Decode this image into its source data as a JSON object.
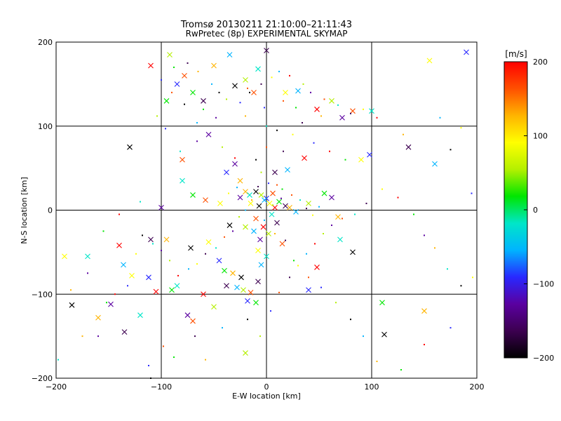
{
  "chart_data": {
    "type": "scatter",
    "title": "Tromsø 20130211 21:10:00–21:11:43",
    "subtitle": "RwPretec (8p) EXPERIMENTAL SKYMAP",
    "xlabel": "E-W location [km]",
    "ylabel": "N-S location [km]",
    "xlim": [
      -200,
      200
    ],
    "ylim": [
      -200,
      200
    ],
    "xticks": [
      -200,
      -100,
      0,
      100,
      200
    ],
    "yticks": [
      -200,
      -100,
      0,
      100,
      200
    ],
    "grid": true,
    "colorbar": {
      "label": "[m/s]",
      "min": -200,
      "max": 200,
      "ticks": [
        200,
        100,
        0,
        -100,
        -200
      ],
      "colors": [
        "#000000",
        "#3c0050",
        "#5a00a0",
        "#2828ff",
        "#00b4ff",
        "#00e6c8",
        "#00e600",
        "#b4f000",
        "#ffff00",
        "#ffb400",
        "#ff5000",
        "#ff0000"
      ]
    },
    "series": [
      {
        "marker": "x",
        "points": [
          [
            -130,
            75
          ],
          [
            -92,
            185
          ],
          [
            -85,
            150
          ],
          [
            -78,
            160
          ],
          [
            -70,
            140
          ],
          [
            -60,
            130
          ],
          [
            -50,
            172
          ],
          [
            -35,
            185
          ],
          [
            -30,
            148
          ],
          [
            -20,
            155
          ],
          [
            -12,
            140
          ],
          [
            -8,
            168
          ],
          [
            0,
            190
          ],
          [
            18,
            140
          ],
          [
            30,
            142
          ],
          [
            48,
            120
          ],
          [
            62,
            130
          ],
          [
            72,
            110
          ],
          [
            82,
            118
          ],
          [
            100,
            118
          ],
          [
            155,
            178
          ],
          [
            190,
            188
          ],
          [
            -110,
            172
          ],
          [
            -95,
            130
          ],
          [
            -100,
            3
          ],
          [
            -95,
            -35
          ],
          [
            -80,
            35
          ],
          [
            -72,
            -45
          ],
          [
            -55,
            -38
          ],
          [
            -45,
            -60
          ],
          [
            -40,
            -72
          ],
          [
            -38,
            -90
          ],
          [
            -32,
            -75
          ],
          [
            -28,
            -92
          ],
          [
            -24,
            -80
          ],
          [
            -22,
            -95
          ],
          [
            -18,
            -108
          ],
          [
            -15,
            -98
          ],
          [
            -10,
            -110
          ],
          [
            -8,
            -85
          ],
          [
            -5,
            -65
          ],
          [
            -60,
            -100
          ],
          [
            -50,
            -115
          ],
          [
            -75,
            -125
          ],
          [
            -70,
            -132
          ],
          [
            -85,
            -90
          ],
          [
            -110,
            -35
          ],
          [
            -128,
            -78
          ],
          [
            -136,
            -65
          ],
          [
            -140,
            -42
          ],
          [
            -148,
            -112
          ],
          [
            -160,
            -128
          ],
          [
            -170,
            -55
          ],
          [
            -185,
            -113
          ],
          [
            -192,
            -55
          ],
          [
            -112,
            -80
          ],
          [
            -105,
            -97
          ],
          [
            -90,
            -95
          ],
          [
            -30,
            55
          ],
          [
            -25,
            35
          ],
          [
            -10,
            22
          ],
          [
            -5,
            18
          ],
          [
            0,
            14
          ],
          [
            6,
            20
          ],
          [
            12,
            10
          ],
          [
            18,
            5
          ],
          [
            22,
            3
          ],
          [
            28,
            -2
          ],
          [
            -35,
            -18
          ],
          [
            -20,
            -20
          ],
          [
            -10,
            -10
          ],
          [
            5,
            -5
          ],
          [
            10,
            -15
          ],
          [
            -15,
            8
          ],
          [
            -2,
            12
          ],
          [
            8,
            3
          ],
          [
            2,
            -28
          ],
          [
            -6,
            -35
          ],
          [
            15,
            -40
          ],
          [
            0,
            -55
          ],
          [
            -8,
            -48
          ],
          [
            40,
            -95
          ],
          [
            48,
            -68
          ],
          [
            55,
            20
          ],
          [
            62,
            15
          ],
          [
            68,
            -8
          ],
          [
            70,
            -35
          ],
          [
            82,
            -50
          ],
          [
            90,
            60
          ],
          [
            98,
            66
          ],
          [
            110,
            -110
          ],
          [
            135,
            75
          ],
          [
            150,
            -120
          ],
          [
            160,
            55
          ],
          [
            112,
            -148
          ],
          [
            -20,
            -170
          ],
          [
            -38,
            45
          ],
          [
            -58,
            12
          ],
          [
            -70,
            18
          ],
          [
            8,
            45
          ],
          [
            20,
            48
          ],
          [
            36,
            62
          ],
          [
            40,
            8
          ],
          [
            -55,
            90
          ],
          [
            -80,
            60
          ],
          [
            -120,
            -125
          ],
          [
            -135,
            -145
          ],
          [
            -44,
            8
          ],
          [
            -12,
            -25
          ],
          [
            -3,
            -20
          ],
          [
            -25,
            15
          ],
          [
            -20,
            22
          ],
          [
            -16,
            18
          ],
          [
            -7,
            5
          ],
          [
            3,
            8
          ]
        ]
      },
      {
        "marker": "dot",
        "points": [
          [
            -100,
            155
          ],
          [
            -90,
            140
          ],
          [
            -88,
            170
          ],
          [
            -75,
            175
          ],
          [
            -65,
            165
          ],
          [
            -52,
            150
          ],
          [
            -45,
            140
          ],
          [
            -38,
            132
          ],
          [
            -25,
            128
          ],
          [
            -18,
            145
          ],
          [
            -5,
            150
          ],
          [
            5,
            158
          ],
          [
            12,
            165
          ],
          [
            22,
            160
          ],
          [
            35,
            150
          ],
          [
            42,
            140
          ],
          [
            55,
            132
          ],
          [
            68,
            125
          ],
          [
            80,
            115
          ],
          [
            92,
            120
          ],
          [
            105,
            110
          ],
          [
            -60,
            120
          ],
          [
            -48,
            110
          ],
          [
            -20,
            112
          ],
          [
            0,
            100
          ],
          [
            10,
            95
          ],
          [
            25,
            90
          ],
          [
            45,
            80
          ],
          [
            60,
            70
          ],
          [
            75,
            60
          ],
          [
            130,
            90
          ],
          [
            165,
            110
          ],
          [
            -10,
            60
          ],
          [
            -5,
            45
          ],
          [
            2,
            32
          ],
          [
            10,
            30
          ],
          [
            15,
            25
          ],
          [
            -8,
            28
          ],
          [
            -14,
            12
          ],
          [
            -20,
            0
          ],
          [
            -26,
            -8
          ],
          [
            -32,
            -25
          ],
          [
            -40,
            -32
          ],
          [
            -48,
            -45
          ],
          [
            -58,
            -52
          ],
          [
            -66,
            -64
          ],
          [
            -74,
            -70
          ],
          [
            -84,
            -78
          ],
          [
            -92,
            -60
          ],
          [
            -100,
            -48
          ],
          [
            -108,
            -40
          ],
          [
            -118,
            -30
          ],
          [
            -124,
            -52
          ],
          [
            -132,
            -90
          ],
          [
            -144,
            -100
          ],
          [
            -152,
            -110
          ],
          [
            -160,
            -150
          ],
          [
            -175,
            -150
          ],
          [
            -198,
            -178
          ],
          [
            -110,
            -200
          ],
          [
            -112,
            -185
          ],
          [
            -98,
            -162
          ],
          [
            -88,
            -175
          ],
          [
            -68,
            -150
          ],
          [
            -58,
            -178
          ],
          [
            -42,
            -140
          ],
          [
            -18,
            -130
          ],
          [
            -6,
            -150
          ],
          [
            4,
            -120
          ],
          [
            12,
            -98
          ],
          [
            22,
            -80
          ],
          [
            30,
            -66
          ],
          [
            38,
            -52
          ],
          [
            46,
            -40
          ],
          [
            54,
            -28
          ],
          [
            62,
            -18
          ],
          [
            72,
            -10
          ],
          [
            84,
            -5
          ],
          [
            95,
            8
          ],
          [
            110,
            25
          ],
          [
            125,
            15
          ],
          [
            140,
            -5
          ],
          [
            150,
            -30
          ],
          [
            160,
            -45
          ],
          [
            172,
            -70
          ],
          [
            185,
            -90
          ],
          [
            196,
            -80
          ],
          [
            175,
            -140
          ],
          [
            150,
            -160
          ],
          [
            128,
            -190
          ],
          [
            105,
            -180
          ],
          [
            92,
            -150
          ],
          [
            80,
            -130
          ],
          [
            66,
            -110
          ],
          [
            52,
            -92
          ],
          [
            40,
            -80
          ],
          [
            26,
            -60
          ],
          [
            18,
            -36
          ],
          [
            8,
            -28
          ],
          [
            -2,
            -12
          ],
          [
            6,
            6
          ],
          [
            14,
            14
          ],
          [
            24,
            18
          ],
          [
            32,
            12
          ],
          [
            38,
            2
          ],
          [
            44,
            -6
          ],
          [
            50,
            4
          ],
          [
            -30,
            62
          ],
          [
            -42,
            75
          ],
          [
            -66,
            82
          ],
          [
            -82,
            70
          ],
          [
            175,
            72
          ],
          [
            185,
            98
          ],
          [
            195,
            20
          ],
          [
            -140,
            -5
          ],
          [
            -155,
            -25
          ],
          [
            -170,
            -75
          ],
          [
            -186,
            -95
          ],
          [
            -120,
            10
          ],
          [
            -16,
            140
          ],
          [
            -2,
            122
          ],
          [
            16,
            130
          ],
          [
            28,
            122
          ],
          [
            34,
            104
          ],
          [
            52,
            112
          ],
          [
            -66,
            104
          ],
          [
            -78,
            126
          ],
          [
            -104,
            112
          ],
          [
            -96,
            97
          ],
          [
            0,
            75
          ],
          [
            16,
            70
          ],
          [
            -36,
            20
          ],
          [
            -28,
            27
          ]
        ]
      }
    ]
  }
}
